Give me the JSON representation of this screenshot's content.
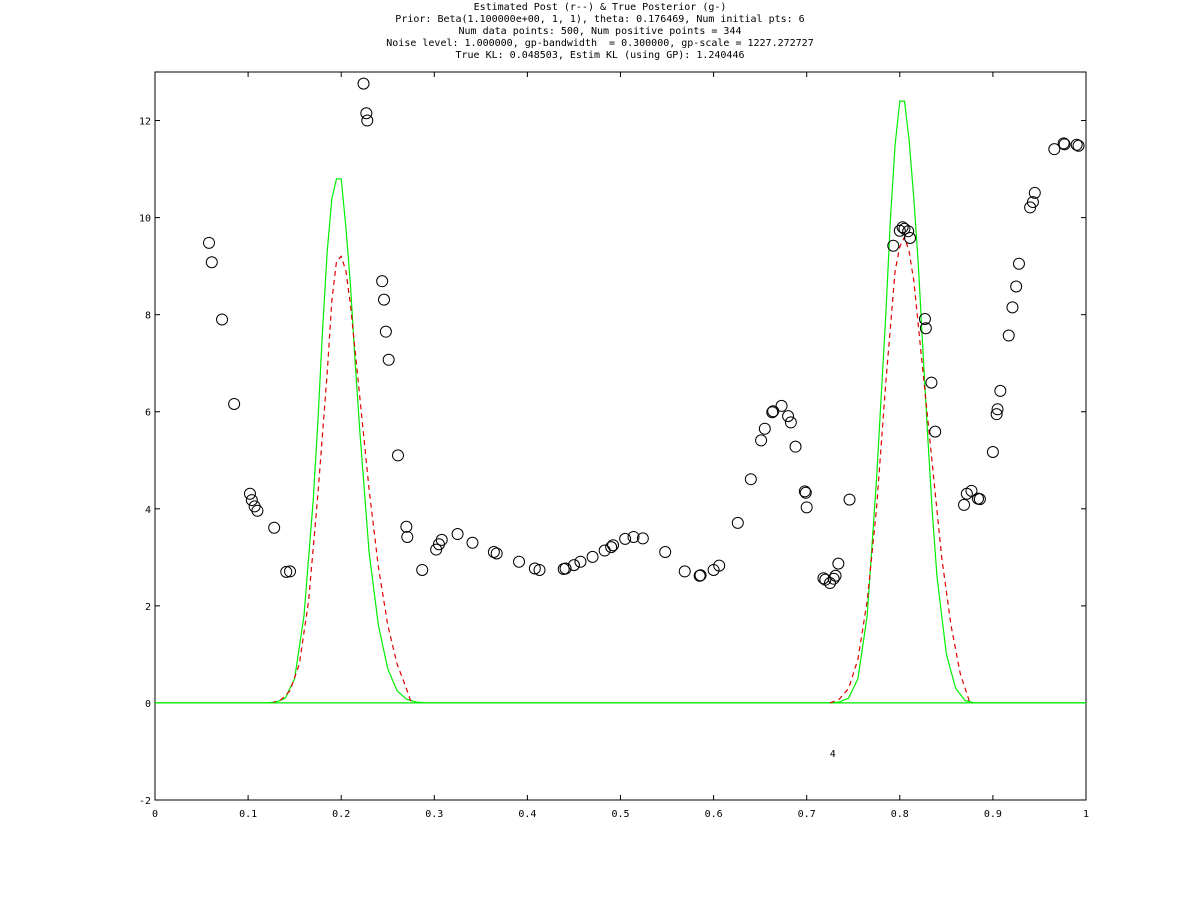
{
  "chart_data": {
    "type": "scatter",
    "title_lines": [
      "Estimated Post (r--) & True Posterior (g-)",
      "Prior: Beta(1.100000e+00, 1, 1), theta: 0.176469, Num initial pts: 6",
      "Num data points: 500, Num positive points = 344",
      "Noise level: 1.000000, gp-bandwidth  = 0.300000, gp-scale = 1227.272727",
      "True KL: 0.048503, Estim KL (using GP): 1.240446"
    ],
    "xlim": [
      0,
      1
    ],
    "ylim": [
      -2,
      13
    ],
    "xticks": [
      0,
      0.1,
      0.2,
      0.3,
      0.4,
      0.5,
      0.6,
      0.7,
      0.8,
      0.9,
      1
    ],
    "xtick_labels": [
      "0",
      "0.1",
      "0.2",
      "0.3",
      "0.4",
      "0.5",
      "0.6",
      "0.7",
      "0.8",
      "0.9",
      "1"
    ],
    "yticks": [
      -2,
      0,
      2,
      4,
      6,
      8,
      10,
      12
    ],
    "ytick_labels": [
      "-2",
      "0",
      "2",
      "4",
      "6",
      "8",
      "10",
      "12"
    ],
    "annotation": {
      "text": "4",
      "x": 0.728,
      "y": -1.03
    },
    "colors": {
      "true_posterior": "#00ee00",
      "estimated_posterior": "#dd0000",
      "points": "#000000"
    },
    "series": [
      {
        "style": "circle-markers",
        "points": [
          [
            0.058,
            9.48
          ],
          [
            0.061,
            9.08
          ],
          [
            0.072,
            7.9
          ],
          [
            0.085,
            6.16
          ],
          [
            0.102,
            4.31
          ],
          [
            0.104,
            4.18
          ],
          [
            0.107,
            4.05
          ],
          [
            0.11,
            3.96
          ],
          [
            0.128,
            3.61
          ],
          [
            0.141,
            2.7
          ],
          [
            0.145,
            2.71
          ],
          [
            0.224,
            12.76
          ],
          [
            0.227,
            12.15
          ],
          [
            0.228,
            12.0
          ],
          [
            0.244,
            8.69
          ],
          [
            0.246,
            8.31
          ],
          [
            0.248,
            7.65
          ],
          [
            0.251,
            7.07
          ],
          [
            0.261,
            5.1
          ],
          [
            0.27,
            3.63
          ],
          [
            0.271,
            3.42
          ],
          [
            0.287,
            2.74
          ],
          [
            0.302,
            3.16
          ],
          [
            0.305,
            3.27
          ],
          [
            0.308,
            3.36
          ],
          [
            0.325,
            3.48
          ],
          [
            0.341,
            3.3
          ],
          [
            0.364,
            3.11
          ],
          [
            0.367,
            3.08
          ],
          [
            0.391,
            2.91
          ],
          [
            0.408,
            2.77
          ],
          [
            0.413,
            2.74
          ],
          [
            0.439,
            2.76
          ],
          [
            0.441,
            2.77
          ],
          [
            0.45,
            2.84
          ],
          [
            0.457,
            2.91
          ],
          [
            0.47,
            3.01
          ],
          [
            0.483,
            3.14
          ],
          [
            0.49,
            3.21
          ],
          [
            0.492,
            3.25
          ],
          [
            0.505,
            3.38
          ],
          [
            0.514,
            3.42
          ],
          [
            0.524,
            3.39
          ],
          [
            0.548,
            3.11
          ],
          [
            0.569,
            2.71
          ],
          [
            0.585,
            2.62
          ],
          [
            0.586,
            2.63
          ],
          [
            0.6,
            2.74
          ],
          [
            0.606,
            2.83
          ],
          [
            0.626,
            3.71
          ],
          [
            0.64,
            4.61
          ],
          [
            0.651,
            5.41
          ],
          [
            0.655,
            5.65
          ],
          [
            0.663,
            5.99
          ],
          [
            0.664,
            6.01
          ],
          [
            0.673,
            6.12
          ],
          [
            0.68,
            5.91
          ],
          [
            0.683,
            5.78
          ],
          [
            0.688,
            5.28
          ],
          [
            0.698,
            4.36
          ],
          [
            0.699,
            4.33
          ],
          [
            0.7,
            4.03
          ],
          [
            0.718,
            2.57
          ],
          [
            0.72,
            2.54
          ],
          [
            0.725,
            2.47
          ],
          [
            0.729,
            2.56
          ],
          [
            0.731,
            2.62
          ],
          [
            0.734,
            2.87
          ],
          [
            0.746,
            4.19
          ],
          [
            0.793,
            9.42
          ],
          [
            0.8,
            9.73
          ],
          [
            0.803,
            9.8
          ],
          [
            0.805,
            9.77
          ],
          [
            0.809,
            9.72
          ],
          [
            0.811,
            9.58
          ],
          [
            0.827,
            7.91
          ],
          [
            0.828,
            7.72
          ],
          [
            0.834,
            6.6
          ],
          [
            0.838,
            5.59
          ],
          [
            0.869,
            4.08
          ],
          [
            0.872,
            4.31
          ],
          [
            0.877,
            4.37
          ],
          [
            0.884,
            4.21
          ],
          [
            0.886,
            4.2
          ],
          [
            0.9,
            5.17
          ],
          [
            0.904,
            5.95
          ],
          [
            0.905,
            6.05
          ],
          [
            0.908,
            6.43
          ],
          [
            0.917,
            7.57
          ],
          [
            0.921,
            8.15
          ],
          [
            0.925,
            8.58
          ],
          [
            0.928,
            9.05
          ],
          [
            0.94,
            10.21
          ],
          [
            0.943,
            10.32
          ],
          [
            0.945,
            10.51
          ],
          [
            0.966,
            11.41
          ],
          [
            0.976,
            11.53
          ],
          [
            0.977,
            11.51
          ],
          [
            0.99,
            11.5
          ],
          [
            0.992,
            11.48
          ]
        ]
      },
      {
        "style": "solid-line",
        "x": [
          0,
          0.12,
          0.13,
          0.14,
          0.15,
          0.16,
          0.17,
          0.175,
          0.18,
          0.185,
          0.19,
          0.195,
          0.2,
          0.205,
          0.21,
          0.215,
          0.22,
          0.23,
          0.24,
          0.25,
          0.26,
          0.27,
          0.28,
          0.29,
          1
        ],
        "y": [
          0,
          0,
          0.02,
          0.1,
          0.5,
          1.8,
          4.2,
          5.8,
          7.7,
          9.3,
          10.4,
          10.8,
          10.8,
          9.8,
          8.6,
          7.0,
          5.6,
          3.1,
          1.6,
          0.7,
          0.25,
          0.08,
          0.02,
          0,
          0
        ]
      },
      {
        "style": "dashed-line",
        "x": [
          0.125,
          0.135,
          0.145,
          0.155,
          0.165,
          0.175,
          0.185,
          0.19,
          0.195,
          0.2,
          0.205,
          0.21,
          0.22,
          0.23,
          0.24,
          0.25,
          0.26,
          0.27,
          0.275
        ],
        "y": [
          0,
          0.06,
          0.25,
          0.8,
          2.1,
          4.3,
          6.8,
          8.3,
          9.1,
          9.2,
          8.9,
          8.2,
          6.3,
          4.4,
          2.8,
          1.6,
          0.8,
          0.3,
          0.02
        ]
      },
      {
        "style": "solid-line",
        "x": [
          0,
          0.725,
          0.735,
          0.745,
          0.755,
          0.765,
          0.775,
          0.785,
          0.79,
          0.795,
          0.8,
          0.805,
          0.81,
          0.815,
          0.82,
          0.825,
          0.83,
          0.835,
          0.84,
          0.85,
          0.86,
          0.87,
          0.88,
          1
        ],
        "y": [
          0,
          0,
          0.02,
          0.1,
          0.5,
          1.8,
          4.6,
          8.0,
          10.0,
          11.5,
          12.4,
          12.4,
          11.6,
          10.4,
          9.0,
          7.2,
          5.5,
          3.9,
          2.6,
          1.0,
          0.3,
          0.05,
          0,
          0
        ]
      },
      {
        "style": "dashed-line",
        "x": [
          0.725,
          0.735,
          0.745,
          0.755,
          0.765,
          0.775,
          0.785,
          0.795,
          0.8,
          0.805,
          0.81,
          0.815,
          0.825,
          0.835,
          0.845,
          0.855,
          0.865,
          0.875
        ],
        "y": [
          0,
          0.08,
          0.3,
          0.9,
          2.1,
          4.0,
          6.6,
          8.9,
          9.4,
          9.6,
          9.3,
          8.7,
          6.8,
          4.9,
          3.0,
          1.6,
          0.6,
          0.02
        ]
      }
    ]
  }
}
